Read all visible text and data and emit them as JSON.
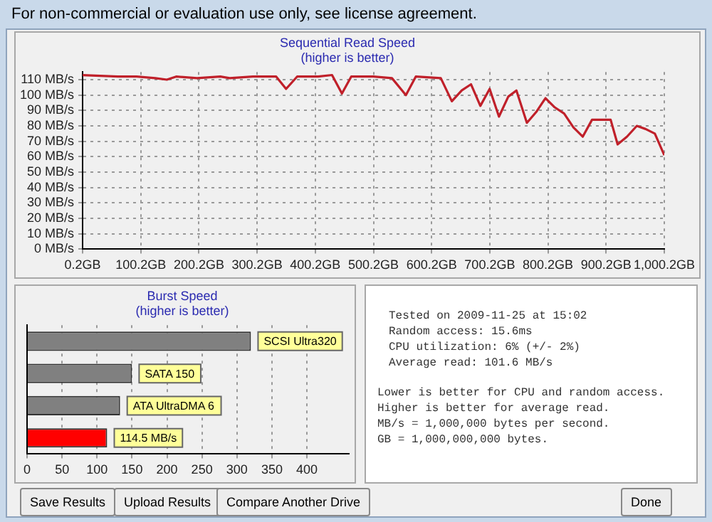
{
  "chart_data": [
    {
      "type": "line",
      "title": "Sequential Read Speed",
      "subtitle": "(higher is better)",
      "x": [
        0.2,
        61,
        93,
        125,
        145,
        161,
        197,
        237,
        253,
        293,
        333,
        350,
        369,
        405,
        429,
        446,
        462,
        500,
        532,
        556,
        573,
        616,
        635,
        652,
        668,
        684,
        700,
        716,
        732,
        746,
        764,
        780,
        796,
        812,
        828,
        844,
        860,
        876,
        908,
        920,
        936,
        953,
        968,
        984,
        1000.2
      ],
      "series": [
        {
          "color": "#c0202a",
          "values": [
            113,
            112,
            112,
            111,
            110,
            112,
            111,
            112,
            111,
            112,
            112,
            104,
            112,
            112,
            113,
            101,
            112,
            112,
            111,
            100,
            112,
            111,
            96,
            103,
            107,
            93,
            104,
            86,
            99,
            103,
            82,
            89,
            98,
            92,
            88,
            79,
            73,
            84,
            84,
            68,
            73,
            80,
            78,
            75,
            61
          ]
        }
      ],
      "xlim": [
        0.2,
        1000.2
      ],
      "ylim": [
        0,
        115
      ],
      "xticks": [
        {
          "value": 0.2,
          "label": "0.2GB"
        },
        {
          "value": 100.2,
          "label": "100.2GB"
        },
        {
          "value": 200.2,
          "label": "200.2GB"
        },
        {
          "value": 300.2,
          "label": "300.2GB"
        },
        {
          "value": 400.2,
          "label": "400.2GB"
        },
        {
          "value": 500.2,
          "label": "500.2GB"
        },
        {
          "value": 600.2,
          "label": "600.2GB"
        },
        {
          "value": 700.2,
          "label": "700.2GB"
        },
        {
          "value": 800.2,
          "label": "800.2GB"
        },
        {
          "value": 900.2,
          "label": "900.2GB"
        },
        {
          "value": 1000.2,
          "label": "1,000.2GB"
        }
      ],
      "yticks": [
        {
          "value": 0,
          "label": "0 MB/s"
        },
        {
          "value": 10,
          "label": "10 MB/s"
        },
        {
          "value": 20,
          "label": "20 MB/s"
        },
        {
          "value": 30,
          "label": "30 MB/s"
        },
        {
          "value": 40,
          "label": "40 MB/s"
        },
        {
          "value": 50,
          "label": "50 MB/s"
        },
        {
          "value": 60,
          "label": "60 MB/s"
        },
        {
          "value": 70,
          "label": "70 MB/s"
        },
        {
          "value": 80,
          "label": "80 MB/s"
        },
        {
          "value": 90,
          "label": "90 MB/s"
        },
        {
          "value": 100,
          "label": "100 MB/s"
        },
        {
          "value": 110,
          "label": "110 MB/s"
        }
      ],
      "grid": true,
      "legend": false,
      "marker": "none",
      "line_style": "solid"
    },
    {
      "type": "bar",
      "orientation": "horizontal",
      "title": "Burst Speed",
      "subtitle": "(higher is better)",
      "categories": [
        "SCSI Ultra320",
        "SATA 150",
        "ATA UltraDMA 6",
        null
      ],
      "values": [
        320,
        150,
        133,
        114.5
      ],
      "colors": [
        "#808080",
        "#808080",
        "#808080",
        "#ff0000"
      ],
      "value_labels": [
        null,
        null,
        null,
        "114.5 MB/s"
      ],
      "xlim": [
        0,
        460
      ],
      "xticks": [
        0,
        50,
        100,
        150,
        200,
        250,
        300,
        350,
        400
      ],
      "grid": "x",
      "tick_labels": "x",
      "legend": false
    },
    {
      "type": "other",
      "annotations": [
        "Tested on 2009-11-25 at 15:02",
        "Random access: 15.6ms",
        "CPU utilization: 6% (+/- 2%)",
        "Average read: 101.6 MB/s",
        "Lower is better for CPU and random access.",
        "Higher is better for average read.",
        "MB/s = 1,000,000 bytes per second.",
        "GB = 1,000,000,000 bytes."
      ]
    },
    {
      "type": "other",
      "title": "For non-commercial or evaluation use only, see license agreement.",
      "annotations": [
        "Save Results",
        "Upload Results",
        "Compare Another Drive",
        "Done"
      ]
    }
  ]
}
